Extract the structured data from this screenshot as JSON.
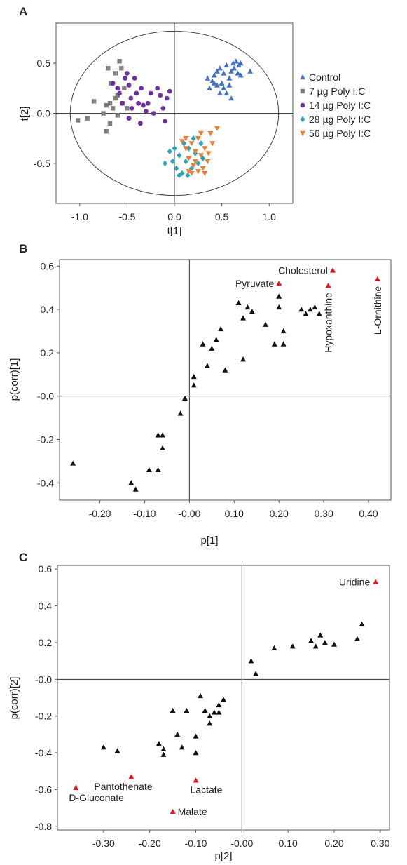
{
  "chart_data": [
    {
      "panel": "A",
      "type": "scatter",
      "xlabel": "t[1]",
      "ylabel": "t[2]",
      "xlim": [
        -1.25,
        1.25
      ],
      "ylim": [
        -0.9,
        0.9
      ],
      "x_ticks": [
        "-1.0",
        "-0.5",
        "0.0",
        "0.5",
        "1.0"
      ],
      "x_tick_values": [
        -1.0,
        -0.5,
        0.0,
        0.5,
        1.0
      ],
      "y_ticks": [
        "0.5",
        "0.0",
        "-0.5"
      ],
      "y_tick_values": [
        0.5,
        0.0,
        -0.5
      ],
      "ellipse": {
        "rx": 1.1,
        "ry": 0.82
      },
      "legend_position": "right",
      "series": [
        {
          "name": "Control",
          "marker": "triangle-up",
          "color": "#4472c4",
          "points": [
            [
              0.37,
              0.25
            ],
            [
              0.4,
              0.32
            ],
            [
              0.42,
              0.38
            ],
            [
              0.45,
              0.42
            ],
            [
              0.48,
              0.45
            ],
            [
              0.5,
              0.3
            ],
            [
              0.52,
              0.4
            ],
            [
              0.55,
              0.48
            ],
            [
              0.58,
              0.35
            ],
            [
              0.6,
              0.42
            ],
            [
              0.62,
              0.5
            ],
            [
              0.63,
              0.45
            ],
            [
              0.65,
              0.52
            ],
            [
              0.67,
              0.4
            ],
            [
              0.68,
              0.48
            ],
            [
              0.7,
              0.38
            ],
            [
              0.55,
              0.2
            ],
            [
              0.6,
              0.15
            ],
            [
              0.52,
              0.25
            ],
            [
              0.45,
              0.28
            ],
            [
              0.48,
              0.2
            ],
            [
              0.42,
              0.3
            ],
            [
              0.7,
              0.5
            ],
            [
              0.8,
              0.42
            ],
            [
              0.35,
              0.35
            ],
            [
              0.58,
              0.28
            ]
          ]
        },
        {
          "name": "7 µg Poly I:C",
          "marker": "square",
          "color": "#7f7f7f",
          "points": [
            [
              -1.02,
              -0.07
            ],
            [
              -0.92,
              -0.05
            ],
            [
              -0.85,
              0.12
            ],
            [
              -0.75,
              0.0
            ],
            [
              -0.72,
              -0.18
            ],
            [
              -0.7,
              0.45
            ],
            [
              -0.68,
              0.1
            ],
            [
              -0.68,
              -0.1
            ],
            [
              -0.65,
              0.05
            ],
            [
              -0.62,
              0.4
            ],
            [
              -0.62,
              0.15
            ],
            [
              -0.6,
              0.18
            ],
            [
              -0.58,
              0.52
            ],
            [
              -0.56,
              0.45
            ],
            [
              -0.55,
              0.1
            ],
            [
              -0.53,
              0.25
            ],
            [
              -0.5,
              0.05
            ],
            [
              -0.67,
              0.3
            ],
            [
              -0.6,
              -0.02
            ],
            [
              -0.72,
              0.08
            ]
          ]
        },
        {
          "name": "14 µg Poly I:C",
          "marker": "circle",
          "color": "#7030a0",
          "points": [
            [
              -0.65,
              0.3
            ],
            [
              -0.6,
              0.25
            ],
            [
              -0.58,
              0.2
            ],
            [
              -0.55,
              0.1
            ],
            [
              -0.52,
              0.35
            ],
            [
              -0.5,
              0.4
            ],
            [
              -0.48,
              0.28
            ],
            [
              -0.46,
              0.15
            ],
            [
              -0.45,
              0.05
            ],
            [
              -0.42,
              0.35
            ],
            [
              -0.4,
              0.2
            ],
            [
              -0.38,
              0.1
            ],
            [
              -0.36,
              -0.1
            ],
            [
              -0.35,
              0.25
            ],
            [
              -0.33,
              0.08
            ],
            [
              -0.3,
              0.02
            ],
            [
              -0.28,
              0.1
            ],
            [
              -0.25,
              0.2
            ],
            [
              -0.22,
              0.0
            ],
            [
              -0.18,
              0.25
            ],
            [
              -0.15,
              0.18
            ],
            [
              -0.12,
              0.05
            ],
            [
              -0.1,
              -0.08
            ],
            [
              -0.08,
              0.15
            ],
            [
              -0.05,
              0.22
            ],
            [
              -0.48,
              -0.05
            ]
          ]
        },
        {
          "name": "28 µg Poly I:C",
          "marker": "diamond",
          "color": "#2aa5c0",
          "points": [
            [
              -0.1,
              -0.5
            ],
            [
              -0.05,
              -0.38
            ],
            [
              0.0,
              -0.35
            ],
            [
              0.02,
              -0.55
            ],
            [
              0.05,
              -0.42
            ],
            [
              0.08,
              -0.6
            ],
            [
              0.1,
              -0.3
            ],
            [
              0.12,
              -0.48
            ],
            [
              0.15,
              -0.35
            ],
            [
              0.18,
              -0.55
            ],
            [
              0.2,
              -0.25
            ],
            [
              0.22,
              -0.4
            ],
            [
              0.25,
              -0.5
            ],
            [
              0.28,
              -0.3
            ],
            [
              0.3,
              -0.45
            ],
            [
              0.05,
              -0.62
            ],
            [
              -0.02,
              -0.48
            ],
            [
              0.14,
              -0.62
            ]
          ]
        },
        {
          "name": "56 µg Poly I:C",
          "marker": "triangle-down",
          "color": "#ed7d31",
          "points": [
            [
              0.08,
              -0.28
            ],
            [
              0.12,
              -0.35
            ],
            [
              0.15,
              -0.45
            ],
            [
              0.18,
              -0.3
            ],
            [
              0.2,
              -0.52
            ],
            [
              0.22,
              -0.38
            ],
            [
              0.25,
              -0.25
            ],
            [
              0.28,
              -0.42
            ],
            [
              0.3,
              -0.55
            ],
            [
              0.32,
              -0.35
            ],
            [
              0.35,
              -0.48
            ],
            [
              0.38,
              -0.2
            ],
            [
              0.4,
              -0.3
            ],
            [
              0.18,
              -0.6
            ],
            [
              0.25,
              -0.58
            ],
            [
              0.32,
              -0.6
            ],
            [
              0.28,
              -0.2
            ],
            [
              0.22,
              -0.48
            ],
            [
              0.15,
              -0.58
            ],
            [
              0.36,
              -0.4
            ],
            [
              0.45,
              -0.15
            ],
            [
              0.12,
              -0.25
            ]
          ]
        }
      ]
    },
    {
      "panel": "B",
      "type": "scatter",
      "xlabel": "p[1]",
      "ylabel": "p(corr)[1]",
      "xlim": [
        -0.29,
        0.45
      ],
      "ylim": [
        -0.48,
        0.63
      ],
      "x_ticks": [
        "-0.20",
        "-0.10",
        "-0.00",
        "0.10",
        "0.20",
        "0.30",
        "0.40"
      ],
      "x_tick_values": [
        -0.2,
        -0.1,
        0.0,
        0.1,
        0.2,
        0.3,
        0.4
      ],
      "y_ticks": [
        "0.6",
        "0.4",
        "0.2",
        "-0.0",
        "-0.2",
        "-0.4"
      ],
      "y_tick_values": [
        0.6,
        0.4,
        0.2,
        0.0,
        -0.2,
        -0.4
      ],
      "points": [
        [
          -0.26,
          -0.31
        ],
        [
          -0.13,
          -0.4
        ],
        [
          -0.12,
          -0.43
        ],
        [
          -0.09,
          -0.34
        ],
        [
          -0.07,
          -0.18
        ],
        [
          -0.07,
          -0.34
        ],
        [
          -0.06,
          -0.24
        ],
        [
          -0.06,
          -0.18
        ],
        [
          -0.02,
          -0.08
        ],
        [
          -0.01,
          -0.01
        ],
        [
          0.01,
          0.05
        ],
        [
          0.01,
          0.09
        ],
        [
          0.03,
          0.24
        ],
        [
          0.04,
          0.14
        ],
        [
          0.05,
          0.22
        ],
        [
          0.06,
          0.26
        ],
        [
          0.07,
          0.31
        ],
        [
          0.08,
          0.12
        ],
        [
          0.11,
          0.43
        ],
        [
          0.12,
          0.17
        ],
        [
          0.12,
          0.36
        ],
        [
          0.13,
          0.41
        ],
        [
          0.14,
          0.39
        ],
        [
          0.17,
          0.33
        ],
        [
          0.19,
          0.24
        ],
        [
          0.2,
          0.41
        ],
        [
          0.2,
          0.46
        ],
        [
          0.21,
          0.3
        ],
        [
          0.21,
          0.24
        ],
        [
          0.25,
          0.4
        ],
        [
          0.26,
          0.38
        ],
        [
          0.27,
          0.4
        ],
        [
          0.28,
          0.41
        ],
        [
          0.29,
          0.38
        ]
      ],
      "highlighted": [
        {
          "label": "Cholesterol",
          "x": 0.32,
          "y": 0.58
        },
        {
          "label": "Pyruvate",
          "x": 0.2,
          "y": 0.52
        },
        {
          "label": "Hypoxanthine",
          "x": 0.31,
          "y": 0.51
        },
        {
          "label": "L-Ornithine",
          "x": 0.42,
          "y": 0.54
        }
      ]
    },
    {
      "panel": "C",
      "type": "scatter",
      "xlabel": "p[2]",
      "ylabel": "p(corr)[2]",
      "xlim": [
        -0.4,
        0.32
      ],
      "ylim": [
        -0.82,
        0.62
      ],
      "x_ticks": [
        "-0.30",
        "-0.20",
        "-0.10",
        "-0.00",
        "0.10",
        "0.20",
        "0.30"
      ],
      "x_tick_values": [
        -0.3,
        -0.2,
        -0.1,
        0.0,
        0.1,
        0.2,
        0.3
      ],
      "y_ticks": [
        "0.6",
        "0.4",
        "0.2",
        "-0.0",
        "-0.2",
        "-0.4",
        "-0.6",
        "-0.8"
      ],
      "y_tick_values": [
        0.6,
        0.4,
        0.2,
        0.0,
        -0.2,
        -0.4,
        -0.6,
        -0.8
      ],
      "points": [
        [
          -0.3,
          -0.37
        ],
        [
          -0.27,
          -0.39
        ],
        [
          -0.18,
          -0.35
        ],
        [
          -0.17,
          -0.38
        ],
        [
          -0.17,
          -0.41
        ],
        [
          -0.15,
          -0.17
        ],
        [
          -0.14,
          -0.3
        ],
        [
          -0.13,
          -0.37
        ],
        [
          -0.12,
          -0.17
        ],
        [
          -0.1,
          -0.31
        ],
        [
          -0.1,
          -0.4
        ],
        [
          -0.09,
          -0.09
        ],
        [
          -0.08,
          -0.17
        ],
        [
          -0.07,
          -0.2
        ],
        [
          -0.07,
          -0.24
        ],
        [
          -0.06,
          -0.18
        ],
        [
          -0.05,
          -0.18
        ],
        [
          -0.05,
          -0.14
        ],
        [
          -0.04,
          -0.11
        ],
        [
          0.02,
          0.1
        ],
        [
          0.03,
          0.03
        ],
        [
          0.07,
          0.17
        ],
        [
          0.11,
          0.18
        ],
        [
          0.15,
          0.21
        ],
        [
          0.16,
          0.18
        ],
        [
          0.17,
          0.24
        ],
        [
          0.18,
          0.2
        ],
        [
          0.2,
          0.19
        ],
        [
          0.25,
          0.22
        ],
        [
          0.26,
          0.3
        ]
      ],
      "highlighted": [
        {
          "label": "Uridine",
          "x": 0.29,
          "y": 0.53
        },
        {
          "label": "Pantothenate",
          "x": -0.24,
          "y": -0.53
        },
        {
          "label": "D-Gluconate",
          "x": -0.36,
          "y": -0.59
        },
        {
          "label": "Lactate",
          "x": -0.1,
          "y": -0.55
        },
        {
          "label": "Malate",
          "x": -0.15,
          "y": -0.72
        }
      ]
    }
  ],
  "highlight_color": "#e8141b",
  "point_color": "#111111"
}
